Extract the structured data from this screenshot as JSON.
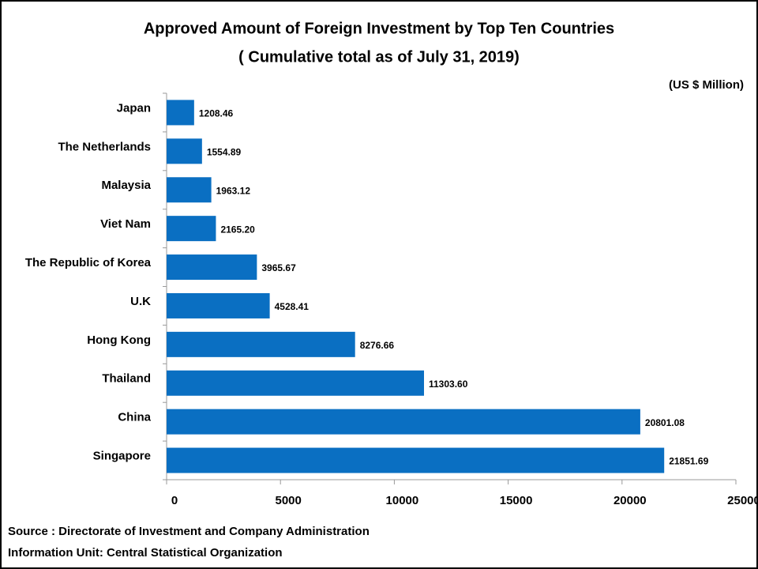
{
  "chart_data": {
    "type": "bar",
    "orientation": "horizontal",
    "title": "Approved Amount of Foreign Investment by Top Ten Countries",
    "subtitle": "( Cumulative total as of July 31, 2019)",
    "unit_label": "(US $ Million)",
    "categories": [
      "Japan",
      "The Netherlands",
      "Malaysia",
      "Viet Nam",
      "The Republic of Korea",
      "U.K",
      "Hong Kong",
      "Thailand",
      "China",
      "Singapore"
    ],
    "values": [
      1208.46,
      1554.89,
      1963.12,
      2165.2,
      3965.67,
      4528.41,
      8276.66,
      11303.6,
      20801.08,
      21851.69
    ],
    "value_labels": [
      "1208.46",
      "1554.89",
      "1963.12",
      "2165.20",
      "3965.67",
      "4528.41",
      "8276.66",
      "11303.60",
      "20801.08",
      "21851.69"
    ],
    "color": "#0a6fc2",
    "xlim": [
      0,
      25000
    ],
    "xticks": [
      0,
      5000,
      10000,
      15000,
      20000,
      25000
    ],
    "source": "Source :  Directorate of Investment and Company Administration",
    "info": "Information Unit:  Central Statistical Organization"
  }
}
